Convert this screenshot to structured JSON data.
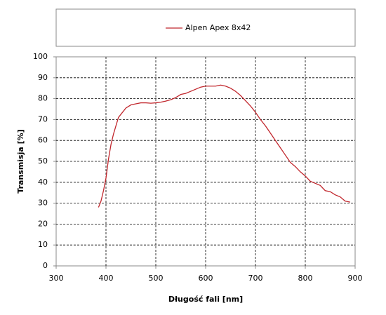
{
  "chart_data": {
    "type": "line",
    "x": [
      385,
      390,
      395,
      400,
      405,
      410,
      415,
      420,
      425,
      430,
      440,
      450,
      460,
      470,
      480,
      490,
      500,
      510,
      520,
      530,
      540,
      550,
      560,
      570,
      580,
      590,
      600,
      610,
      620,
      630,
      640,
      650,
      660,
      670,
      680,
      690,
      700,
      710,
      720,
      730,
      740,
      750,
      760,
      770,
      780,
      790,
      800,
      810,
      820,
      830,
      840,
      850,
      860,
      870,
      880,
      890
    ],
    "series": [
      {
        "name": "Alpen Apex 8x42",
        "color": "#c1272d",
        "values": [
          28,
          31,
          36,
          42,
          51,
          58,
          63,
          67,
          71,
          72.5,
          75.5,
          77,
          77.5,
          78,
          78,
          77.8,
          78,
          78.3,
          78.8,
          79.5,
          80.5,
          82,
          82.5,
          83.5,
          84.5,
          85.5,
          86,
          86,
          86,
          86.5,
          86,
          85,
          83.5,
          81.5,
          79,
          76.5,
          73.5,
          70,
          67,
          63.5,
          60,
          56.5,
          53,
          49.5,
          47.5,
          45,
          43,
          40.5,
          39.5,
          38.5,
          36,
          35.5,
          34,
          33,
          31,
          30.5
        ]
      }
    ],
    "xlabel": "Długość fali [nm]",
    "ylabel": "Transmisja [%]",
    "xlim": [
      300,
      900
    ],
    "xticks": [
      300,
      400,
      500,
      600,
      700,
      800,
      900
    ],
    "ylim": [
      0,
      100
    ],
    "yticks": [
      0,
      10,
      20,
      30,
      40,
      50,
      60,
      70,
      80,
      90,
      100
    ],
    "grid": true
  }
}
